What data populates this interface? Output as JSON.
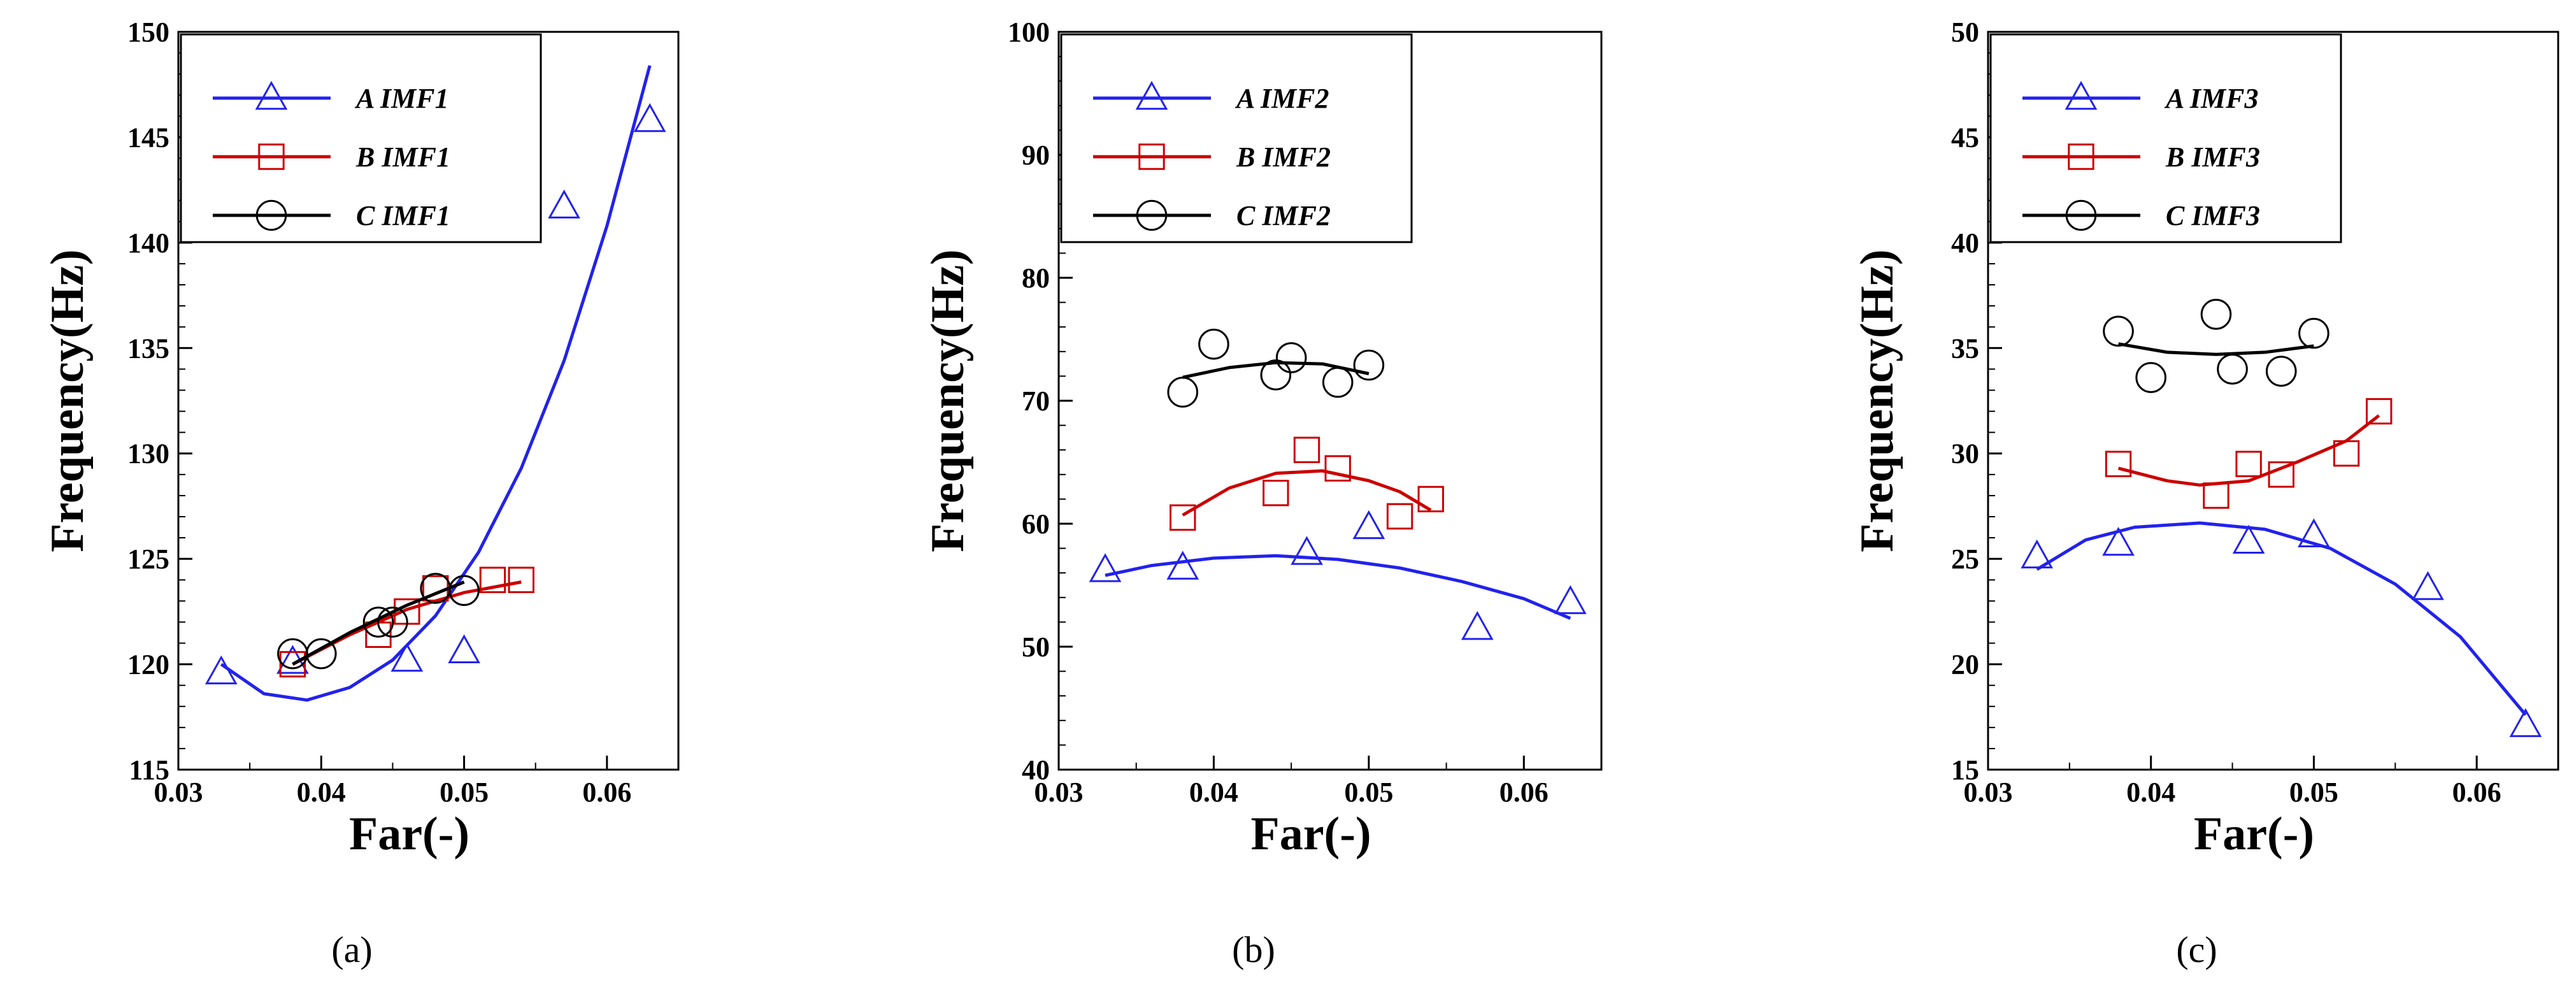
{
  "chart_data": [
    {
      "type": "scatter",
      "panel_label": "(a)",
      "xlabel": "Far(-)",
      "ylabel": "Frequency(Hz)",
      "xlim": [
        0.03,
        0.065
      ],
      "ylim": [
        115,
        150
      ],
      "xticks": [
        0.03,
        0.04,
        0.05,
        0.06
      ],
      "xtick_labels": [
        "0.03",
        "0.04",
        "0.05",
        "0.06"
      ],
      "yticks": [
        115,
        120,
        125,
        130,
        135,
        140,
        145,
        150
      ],
      "ytick_labels": [
        "115",
        "120",
        "125",
        "130",
        "135",
        "140",
        "145",
        "150"
      ],
      "legend_position": "top-left",
      "series": [
        {
          "name": "A IMF1",
          "marker": "triangle",
          "color": "#2222ee",
          "points": [
            [
              0.033,
              119.6
            ],
            [
              0.038,
              120.1
            ],
            [
              0.046,
              120.2
            ],
            [
              0.05,
              120.6
            ],
            [
              0.057,
              141.7
            ],
            [
              0.063,
              145.8
            ]
          ],
          "fit": [
            [
              0.033,
              120.0
            ],
            [
              0.036,
              118.6
            ],
            [
              0.039,
              118.3
            ],
            [
              0.042,
              118.9
            ],
            [
              0.045,
              120.2
            ],
            [
              0.048,
              122.3
            ],
            [
              0.051,
              125.3
            ],
            [
              0.054,
              129.3
            ],
            [
              0.057,
              134.4
            ],
            [
              0.06,
              140.8
            ],
            [
              0.063,
              148.4
            ]
          ]
        },
        {
          "name": "B IMF1",
          "marker": "square",
          "color": "#cc0000",
          "points": [
            [
              0.038,
              120.0
            ],
            [
              0.044,
              121.4
            ],
            [
              0.046,
              122.5
            ],
            [
              0.048,
              123.6
            ],
            [
              0.052,
              124.0
            ],
            [
              0.054,
              124.0
            ]
          ],
          "fit": [
            [
              0.038,
              120.0
            ],
            [
              0.042,
              121.4
            ],
            [
              0.046,
              122.6
            ],
            [
              0.05,
              123.4
            ],
            [
              0.054,
              123.9
            ]
          ]
        },
        {
          "name": "C IMF1",
          "marker": "circle",
          "color": "#000000",
          "points": [
            [
              0.038,
              120.5
            ],
            [
              0.04,
              120.5
            ],
            [
              0.044,
              122.0
            ],
            [
              0.045,
              122.0
            ],
            [
              0.048,
              123.6
            ],
            [
              0.05,
              123.5
            ]
          ],
          "fit": [
            [
              0.038,
              120.0
            ],
            [
              0.042,
              121.5
            ],
            [
              0.046,
              122.8
            ],
            [
              0.05,
              123.9
            ]
          ]
        }
      ]
    },
    {
      "type": "scatter",
      "panel_label": "(b)",
      "xlabel": "Far(-)",
      "ylabel": "Frequency(Hz)",
      "xlim": [
        0.03,
        0.065
      ],
      "ylim": [
        40,
        100
      ],
      "xticks": [
        0.03,
        0.04,
        0.05,
        0.06
      ],
      "xtick_labels": [
        "0.03",
        "0.04",
        "0.05",
        "0.06"
      ],
      "yticks": [
        40,
        50,
        60,
        70,
        80,
        90,
        100
      ],
      "ytick_labels": [
        "40",
        "50",
        "60",
        "70",
        "80",
        "90",
        "100"
      ],
      "legend_position": "top-left",
      "series": [
        {
          "name": "A IMF2",
          "marker": "triangle",
          "color": "#2222ee",
          "points": [
            [
              0.033,
              56.2
            ],
            [
              0.038,
              56.4
            ],
            [
              0.046,
              57.6
            ],
            [
              0.05,
              59.7
            ],
            [
              0.057,
              51.5
            ],
            [
              0.063,
              53.6
            ]
          ],
          "fit": [
            [
              0.033,
              55.8
            ],
            [
              0.036,
              56.6
            ],
            [
              0.04,
              57.2
            ],
            [
              0.044,
              57.4
            ],
            [
              0.048,
              57.1
            ],
            [
              0.052,
              56.4
            ],
            [
              0.056,
              55.3
            ],
            [
              0.06,
              53.9
            ],
            [
              0.063,
              52.3
            ]
          ]
        },
        {
          "name": "B IMF2",
          "marker": "square",
          "color": "#cc0000",
          "points": [
            [
              0.038,
              60.5
            ],
            [
              0.044,
              62.5
            ],
            [
              0.046,
              66.0
            ],
            [
              0.048,
              64.5
            ],
            [
              0.052,
              60.6
            ],
            [
              0.054,
              62.0
            ]
          ],
          "fit": [
            [
              0.038,
              60.7
            ],
            [
              0.041,
              62.9
            ],
            [
              0.044,
              64.1
            ],
            [
              0.047,
              64.3
            ],
            [
              0.05,
              63.5
            ],
            [
              0.052,
              62.6
            ],
            [
              0.054,
              61.1
            ]
          ]
        },
        {
          "name": "C IMF2",
          "marker": "circle",
          "color": "#000000",
          "points": [
            [
              0.038,
              70.7
            ],
            [
              0.04,
              74.6
            ],
            [
              0.044,
              72.1
            ],
            [
              0.045,
              73.5
            ],
            [
              0.048,
              71.5
            ],
            [
              0.05,
              72.9
            ]
          ],
          "fit": [
            [
              0.038,
              71.9
            ],
            [
              0.041,
              72.7
            ],
            [
              0.044,
              73.1
            ],
            [
              0.047,
              73.0
            ],
            [
              0.05,
              72.2
            ]
          ]
        }
      ]
    },
    {
      "type": "scatter",
      "panel_label": "(c)",
      "xlabel": "Far(-)",
      "ylabel": "Frequency(Hz)",
      "xlim": [
        0.03,
        0.065
      ],
      "ylim": [
        15,
        50
      ],
      "xticks": [
        0.03,
        0.04,
        0.05,
        0.06
      ],
      "xtick_labels": [
        "0.03",
        "0.04",
        "0.05",
        "0.06"
      ],
      "yticks": [
        15,
        20,
        25,
        30,
        35,
        40,
        45,
        50
      ],
      "ytick_labels": [
        "15",
        "20",
        "25",
        "30",
        "35",
        "40",
        "45",
        "50"
      ],
      "legend_position": "top-left",
      "series": [
        {
          "name": "A IMF3",
          "marker": "triangle",
          "color": "#2222ee",
          "points": [
            [
              0.033,
              25.1
            ],
            [
              0.038,
              25.7
            ],
            [
              0.046,
              25.8
            ],
            [
              0.05,
              26.1
            ],
            [
              0.057,
              23.6
            ],
            [
              0.063,
              17.1
            ]
          ],
          "fit": [
            [
              0.033,
              24.5
            ],
            [
              0.036,
              25.9
            ],
            [
              0.039,
              26.5
            ],
            [
              0.043,
              26.7
            ],
            [
              0.047,
              26.4
            ],
            [
              0.051,
              25.5
            ],
            [
              0.055,
              23.8
            ],
            [
              0.059,
              21.3
            ],
            [
              0.063,
              17.6
            ]
          ]
        },
        {
          "name": "B IMF3",
          "marker": "square",
          "color": "#cc0000",
          "points": [
            [
              0.038,
              29.5
            ],
            [
              0.044,
              28.0
            ],
            [
              0.046,
              29.5
            ],
            [
              0.048,
              29.0
            ],
            [
              0.052,
              30.0
            ],
            [
              0.054,
              32.0
            ]
          ],
          "fit": [
            [
              0.038,
              29.3
            ],
            [
              0.041,
              28.7
            ],
            [
              0.043,
              28.5
            ],
            [
              0.046,
              28.7
            ],
            [
              0.049,
              29.6
            ],
            [
              0.052,
              30.6
            ],
            [
              0.054,
              31.8
            ]
          ]
        },
        {
          "name": "C IMF3",
          "marker": "circle",
          "color": "#000000",
          "points": [
            [
              0.038,
              35.8
            ],
            [
              0.04,
              33.6
            ],
            [
              0.044,
              36.6
            ],
            [
              0.045,
              34.0
            ],
            [
              0.048,
              33.9
            ],
            [
              0.05,
              35.7
            ]
          ],
          "fit": [
            [
              0.038,
              35.2
            ],
            [
              0.041,
              34.8
            ],
            [
              0.044,
              34.7
            ],
            [
              0.047,
              34.8
            ],
            [
              0.05,
              35.1
            ]
          ]
        }
      ]
    }
  ]
}
